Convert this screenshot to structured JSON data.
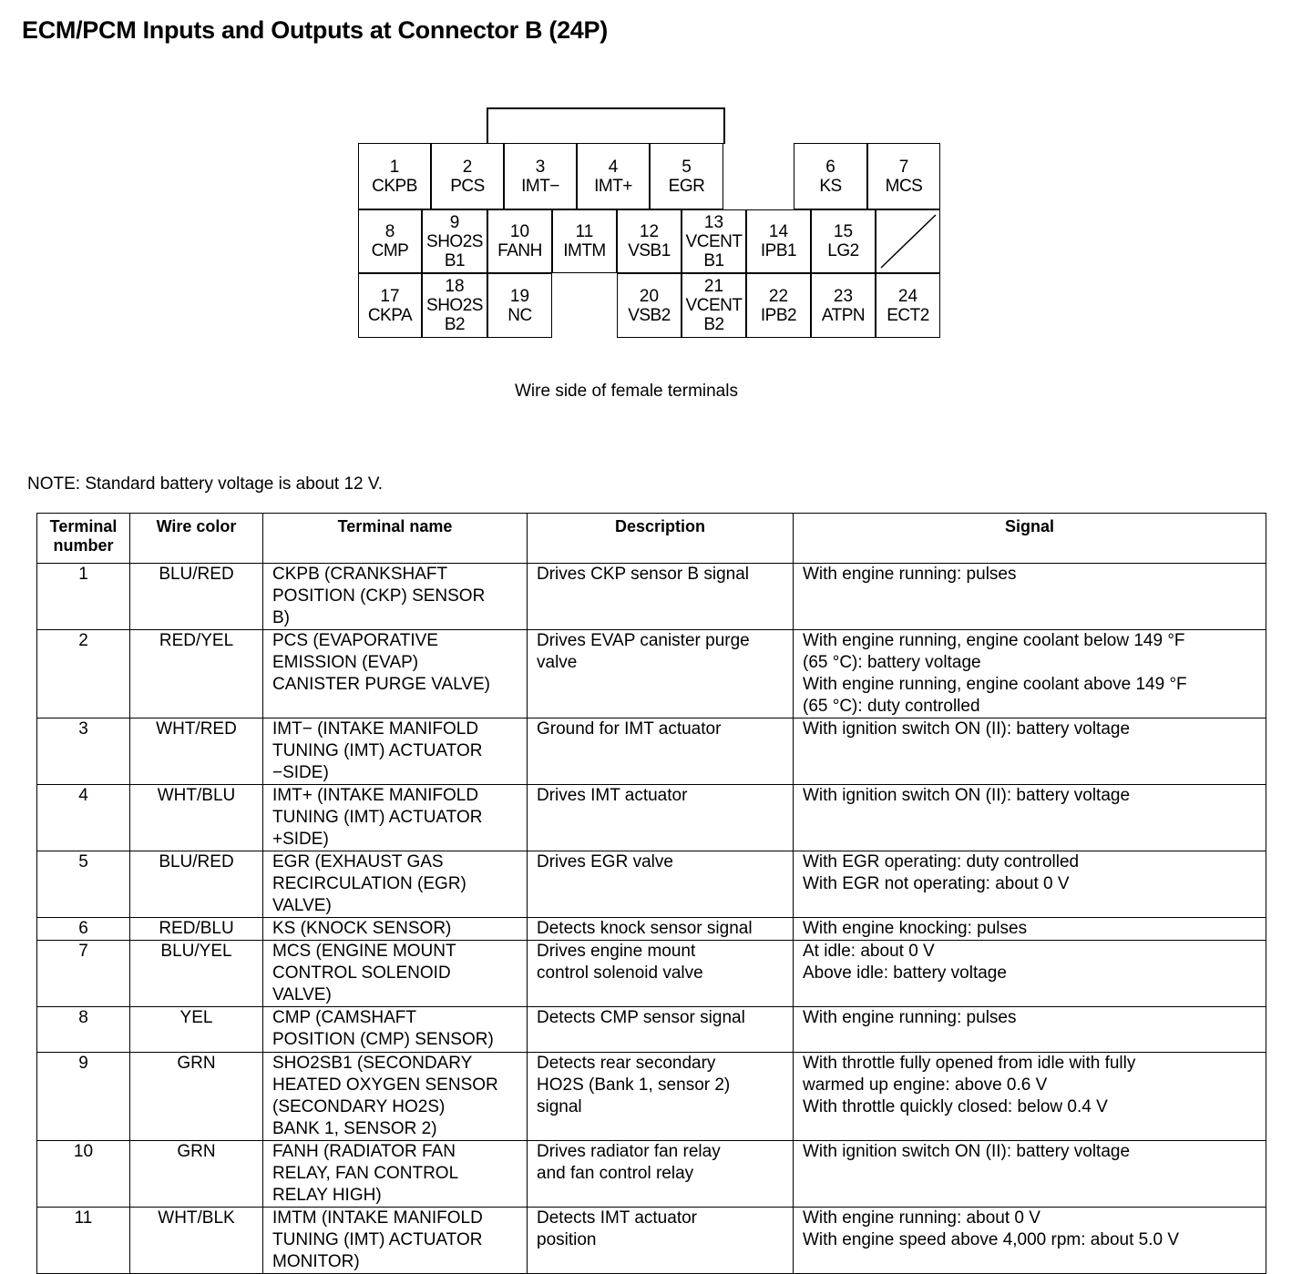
{
  "title": "ECM/PCM Inputs and Outputs at Connector B (24P)",
  "connector": {
    "caption": "Wire side of female terminals",
    "terminals": [
      {
        "n": "1",
        "l": "CKPB"
      },
      {
        "n": "2",
        "l": "PCS"
      },
      {
        "n": "3",
        "l": "IMT−"
      },
      {
        "n": "4",
        "l": "IMT+"
      },
      {
        "n": "5",
        "l": "EGR"
      },
      {
        "n": "6",
        "l": "KS"
      },
      {
        "n": "7",
        "l": "MCS"
      },
      {
        "n": "8",
        "l": "CMP"
      },
      {
        "n": "9",
        "l": "SHO2S\nB1"
      },
      {
        "n": "10",
        "l": "FANH"
      },
      {
        "n": "11",
        "l": "IMTM"
      },
      {
        "n": "12",
        "l": "VSB1"
      },
      {
        "n": "13",
        "l": "VCENT\nB1"
      },
      {
        "n": "14",
        "l": "IPB1"
      },
      {
        "n": "15",
        "l": "LG2"
      },
      {
        "n": "17",
        "l": "CKPA"
      },
      {
        "n": "18",
        "l": "SHO2S\nB2"
      },
      {
        "n": "19",
        "l": "NC"
      },
      {
        "n": "20",
        "l": "VSB2"
      },
      {
        "n": "21",
        "l": "VCENT\nB2"
      },
      {
        "n": "22",
        "l": "IPB2"
      },
      {
        "n": "23",
        "l": "ATPN"
      },
      {
        "n": "24",
        "l": "ECT2"
      }
    ]
  },
  "note": "NOTE: Standard battery voltage is about 12 V.",
  "table": {
    "headers": [
      "Terminal\nnumber",
      "Wire color",
      "Terminal name",
      "Description",
      "Signal"
    ],
    "rows": [
      [
        "1",
        "BLU/RED",
        "CKPB (CRANKSHAFT\nPOSITION (CKP) SENSOR\nB)",
        "Drives CKP sensor B signal",
        "With engine running: pulses"
      ],
      [
        "2",
        "RED/YEL",
        "PCS (EVAPORATIVE\nEMISSION (EVAP)\nCANISTER PURGE VALVE)",
        "Drives EVAP canister purge\nvalve",
        "With engine running, engine coolant below 149 °F\n(65 °C): battery voltage\nWith engine running, engine coolant above 149 °F\n(65 °C): duty controlled"
      ],
      [
        "3",
        "WHT/RED",
        "IMT− (INTAKE MANIFOLD\nTUNING (IMT) ACTUATOR\n−SIDE)",
        "Ground for IMT actuator",
        "With ignition switch ON (II): battery voltage"
      ],
      [
        "4",
        "WHT/BLU",
        "IMT+ (INTAKE MANIFOLD\nTUNING (IMT) ACTUATOR\n+SIDE)",
        "Drives IMT actuator",
        "With ignition switch ON (II): battery voltage"
      ],
      [
        "5",
        "BLU/RED",
        "EGR (EXHAUST GAS\nRECIRCULATION (EGR)\nVALVE)",
        "Drives EGR valve",
        "With EGR operating: duty controlled\nWith EGR not operating: about 0 V"
      ],
      [
        "6",
        "RED/BLU",
        "KS (KNOCK SENSOR)",
        "Detects knock sensor signal",
        "With engine knocking: pulses"
      ],
      [
        "7",
        "BLU/YEL",
        "MCS (ENGINE MOUNT\nCONTROL SOLENOID\nVALVE)",
        "Drives engine mount\ncontrol solenoid valve",
        "At idle: about 0 V\nAbove idle: battery voltage"
      ],
      [
        "8",
        "YEL",
        "CMP (CAMSHAFT\nPOSITION (CMP) SENSOR)",
        "Detects CMP sensor signal",
        "With engine running: pulses"
      ],
      [
        "9",
        "GRN",
        "SHO2SB1 (SECONDARY\nHEATED OXYGEN SENSOR\n(SECONDARY HO2S)\nBANK 1, SENSOR 2)",
        "Detects rear secondary\nHO2S (Bank 1, sensor 2)\nsignal",
        "With throttle fully opened from idle with fully\nwarmed up engine: above 0.6 V\nWith throttle quickly closed: below 0.4 V"
      ],
      [
        "10",
        "GRN",
        "FANH (RADIATOR FAN\nRELAY, FAN CONTROL\nRELAY HIGH)",
        "Drives radiator fan relay\nand fan control relay",
        "With ignition switch ON (II): battery voltage"
      ],
      [
        "11",
        "WHT/BLK",
        "IMTM (INTAKE MANIFOLD\nTUNING (IMT) ACTUATOR\nMONITOR)",
        "Detects IMT actuator\nposition",
        "With engine running: about 0 V\nWith engine speed above 4,000 rpm: about 5.0 V"
      ]
    ]
  }
}
